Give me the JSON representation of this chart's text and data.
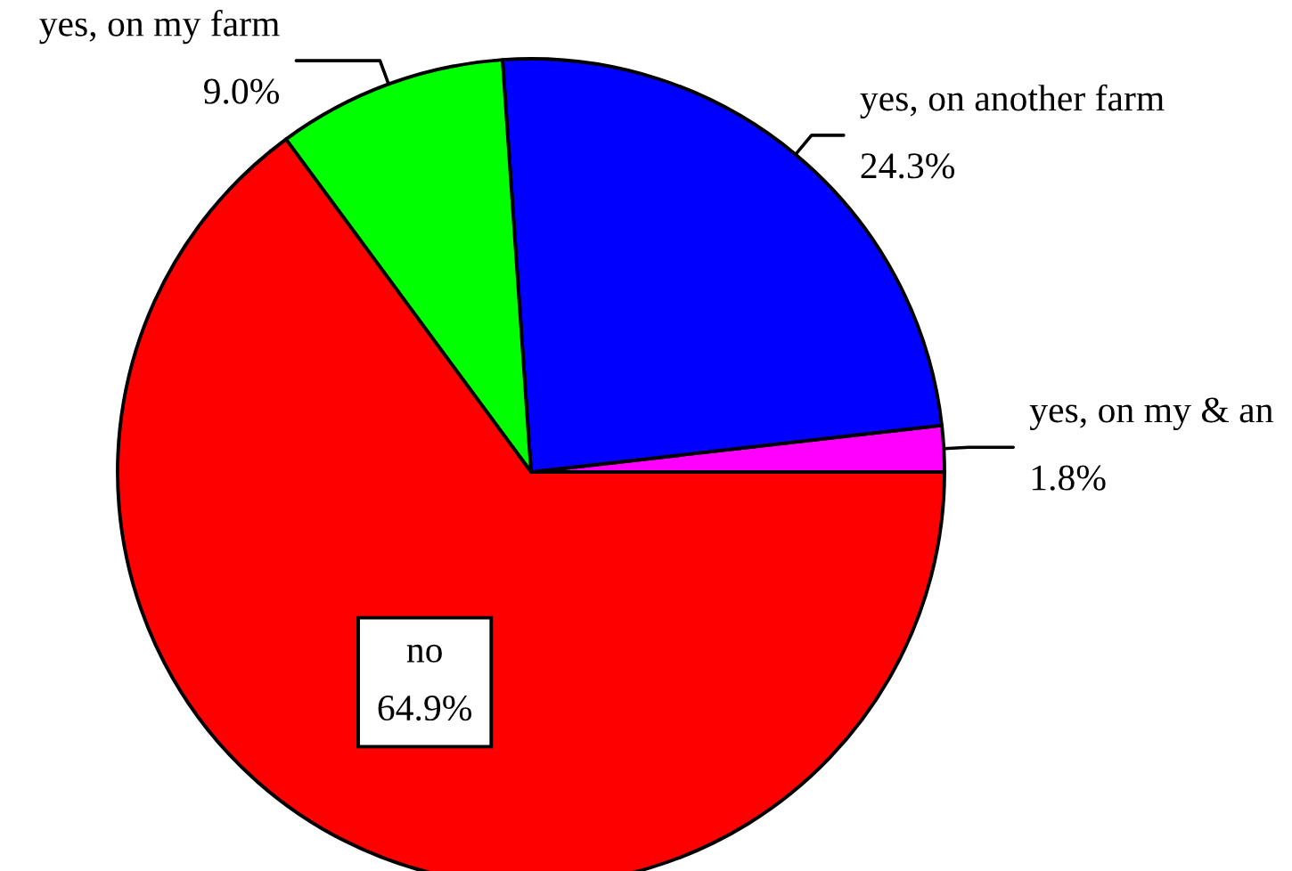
{
  "chart_data": {
    "type": "pie",
    "categories": [
      "yes, on my & an",
      "yes, on another farm",
      "yes, on my farm",
      "no"
    ],
    "values": [
      1.8,
      24.3,
      9.0,
      64.9
    ],
    "colors": [
      "#ff00ff",
      "#0000ff",
      "#00ff00",
      "#ff0000"
    ],
    "value_labels": [
      "1.8%",
      "24.3%",
      "9.0%",
      "64.9%"
    ]
  }
}
